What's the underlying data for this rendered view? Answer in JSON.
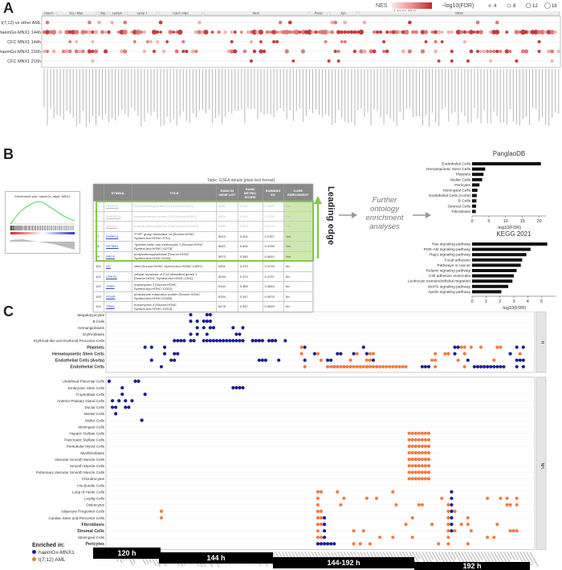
{
  "panels": {
    "a": "A",
    "b": "B",
    "c": "C"
  },
  "panelA": {
    "legend": {
      "nes_label": "NES",
      "nes_ticks": "1.41.61.82.0",
      "fdr_label": "−log10(FDR)",
      "fdr_values": [
        "4",
        "8",
        "12",
        "16"
      ]
    },
    "row_labels": [
      "t(7;12) vs other AML",
      "haemGx-MNX1 144h",
      "CFC MNX1 144h",
      "haemGx-MNX1 216h",
      "CFC MNX1 216h"
    ],
    "groups": [
      "Haem",
      "Ery / Mye",
      "Imp",
      "Lymph",
      "Lymp T",
      "Card / Myo",
      "Neur",
      "Pancr",
      "Epi",
      "Other"
    ]
  },
  "panelB": {
    "gsea_title": "Enrichment plot: haemGx_day6_MNX1",
    "table_caption": "Table: GSEA details [plain text format]",
    "headers": [
      "",
      "SYMBOL",
      "TITLE",
      "RANK IN GENE LIST",
      "RANK METRIC SCORE",
      "RUNNING ES",
      "CORE ENRICHMENT"
    ],
    "rows": [
      {
        "n": "94",
        "sym": "FKBP1A",
        "title": "FK506 binding protein 1A [Source:HGNC]",
        "rank": "5601",
        "score": "0.402",
        "es": "0.4800",
        "core": "Yes",
        "faint": true
      },
      {
        "n": "95",
        "sym": "TMEM219",
        "title": "transmembrane protein 219 [Source:HGNC]",
        "rank": "5604",
        "score": "0.402",
        "es": "0.4790",
        "core": "Yes",
        "faint": true
      },
      {
        "n": "96",
        "sym": "NFE2L1",
        "title": "nuclear factor erythroid 2 like [Source:HGNC]",
        "rank": "5609",
        "score": "0.401",
        "es": "0.4770",
        "core": "Yes",
        "faint": true
      },
      {
        "n": "97",
        "sym": "FKBP1A",
        "title": "\"FGP\" group associator 1A [Source:HGNC Symbol;Acc:HGNC:3711]",
        "rank": "5613",
        "score": "0.401",
        "es": "0.4757",
        "core": "Yes",
        "faint": false
      },
      {
        "n": "98",
        "sym": "SPTBN1",
        "title": "\"spectrin beta, non-erythrocytic 1 [Source:HGNC Symbol;Acc:HGNC:11275]\"",
        "rank": "5622",
        "score": "0.400",
        "es": "0.4796",
        "core": "Yes",
        "faint": false
      },
      {
        "n": "99",
        "sym": "PRCP",
        "title": "prolylcarboxypeptidase [Source:HGNC Symbol;Acc:HGNC:9344]",
        "rank": "5673",
        "score": "0.380",
        "es": "0.4810",
        "core": "Yes",
        "faint": false
      },
      {
        "n": "100",
        "sym": "VIT",
        "title": "vitrin [Source:HGNC Symbol;Acc:HGNC:12697]",
        "rank": "5901",
        "score": "0.379",
        "es": "0.4715",
        "core": "No",
        "faint": false
      },
      {
        "n": "101",
        "sym": "CREG1",
        "title": "cellular repressor of E1A stimulated genes 1 [Source:HGNC Symbol;Acc:HGNC:2351]",
        "rank": "5934",
        "score": "0.379",
        "es": "0.4737",
        "core": "No",
        "faint": false
      },
      {
        "n": "102",
        "sym": "TPM3",
        "title": "tropomyosin 3 [Source:HGNC Symbol;Acc:HGNC:12012]",
        "rank": "6142",
        "score": "0.365",
        "es": "0.4653",
        "core": "No",
        "faint": false
      },
      {
        "n": "103",
        "sym": "PCMP",
        "title": "proteasome maturation protein [Source:HGNC Symbol;Acc:HGNC:20330]",
        "rank": "6334",
        "score": "0.347",
        "es": "0.4578",
        "core": "No",
        "faint": false
      },
      {
        "n": "104",
        "sym": "TPM4",
        "title": "tropomyosin 4 [Source:HGNC Symbol;Acc:HGNC:12013]",
        "rank": "6478",
        "score": "0.337",
        "es": "0.4529",
        "core": "No",
        "faint": false
      }
    ],
    "leading_edge": "Leading edge",
    "further": [
      "Further",
      "ontology",
      "enrichment",
      "analyses"
    ]
  },
  "chart_data": [
    {
      "type": "bar",
      "title": "PanglaoDB",
      "categories": [
        "Endothelial Cells",
        "Hematopoietic Stem Cells",
        "Platelets",
        "Muller Cells",
        "Pericytes",
        "Meningeal Cells",
        "Endothelial Cells (Aorta)",
        "B Cells",
        "Stromal Cells",
        "Fibroblasts"
      ],
      "values": [
        20.5,
        3.9,
        3.4,
        3.0,
        2.2,
        1.6,
        1.4,
        1.3,
        1.2,
        1.1
      ],
      "xlabel": "-log10(FDR)",
      "xlim": [
        0,
        22
      ],
      "xticks": [
        "0",
        "5",
        "10",
        "15",
        "20"
      ]
    },
    {
      "type": "bar",
      "title": "KEGG 2021",
      "categories": [
        "Ras signaling pathway",
        "PI3K-Akt signaling pathway",
        "Rap1 signaling pathway",
        "Focal adhesion",
        "Pathways in cancer",
        "Relaxin signaling pathway",
        "Cell adhesion molecules",
        "Leukocyte transendothelial migration",
        "MAPK signaling pathway",
        "Apelin signaling pathway"
      ],
      "values": [
        5.4,
        4.2,
        3.9,
        3.6,
        3.5,
        3.2,
        3.0,
        2.9,
        2.6,
        2.1
      ],
      "xlabel": "-log10(FDR)",
      "xlim": [
        0,
        6
      ],
      "xticks": [
        "0",
        "1",
        "2",
        "3",
        "4",
        "5"
      ]
    }
  ],
  "panelC": {
    "h_rows": [
      "Megakaryocytes",
      "B Cells",
      "Hemangioblasts",
      "Erythroblasts",
      "Erythroid-like and Erythroid Precursor Cells",
      "Platelets",
      "Hematopoietic Stem Cells",
      "Endothelial Cells (Aorta)",
      "Endothelial Cells"
    ],
    "nh_rows": [
      "Undefined Placental Cells",
      "Embryonic Stem Cells",
      "Trophoblast Cells",
      "Anterior Pituitary Gland Cells",
      "Ductal Cells",
      "Merkel Cells",
      "Muller Cells",
      "Meningeal Cells",
      "Hepatic Stellate Cells",
      "Pancreatic Stellate Cells",
      "Peritubular Myoid Cells",
      "Myofibroblasts",
      "Vascular Smooth Muscle Cells",
      "Smooth Muscle Cells",
      "Pulmonary Vascular Smooth Muscle Cells",
      "Chondrocytes",
      "His Bundle Cells",
      "Loop of Henle Cells",
      "Leydig Cells",
      "Osteocytes",
      "Adipocyte Progenitor Cells",
      "Cardiac Stem and Precursor Cells",
      "Fibroblasts",
      "Stromal Cells",
      "Meningeal Cells",
      "Pericytes"
    ],
    "bold_rows": [
      "Platelets",
      "Hematopoietic Stem Cells",
      "Endothelial Cells (Aorta)",
      "Endothelial Cells",
      "Fibroblasts",
      "Stromal Cells",
      "Meningeal Cells",
      "Pericytes"
    ],
    "facets": [
      "H",
      "NH"
    ],
    "legend_title": "Enriched in:",
    "legend_items": [
      {
        "label": "haemGx-MNX1",
        "color": "#1c1f8c"
      },
      {
        "label": "t(7;12) AML",
        "color": "#f07c45"
      }
    ],
    "timeline": [
      "120 h",
      "144 h",
      "144-192 h",
      "192 h"
    ]
  }
}
